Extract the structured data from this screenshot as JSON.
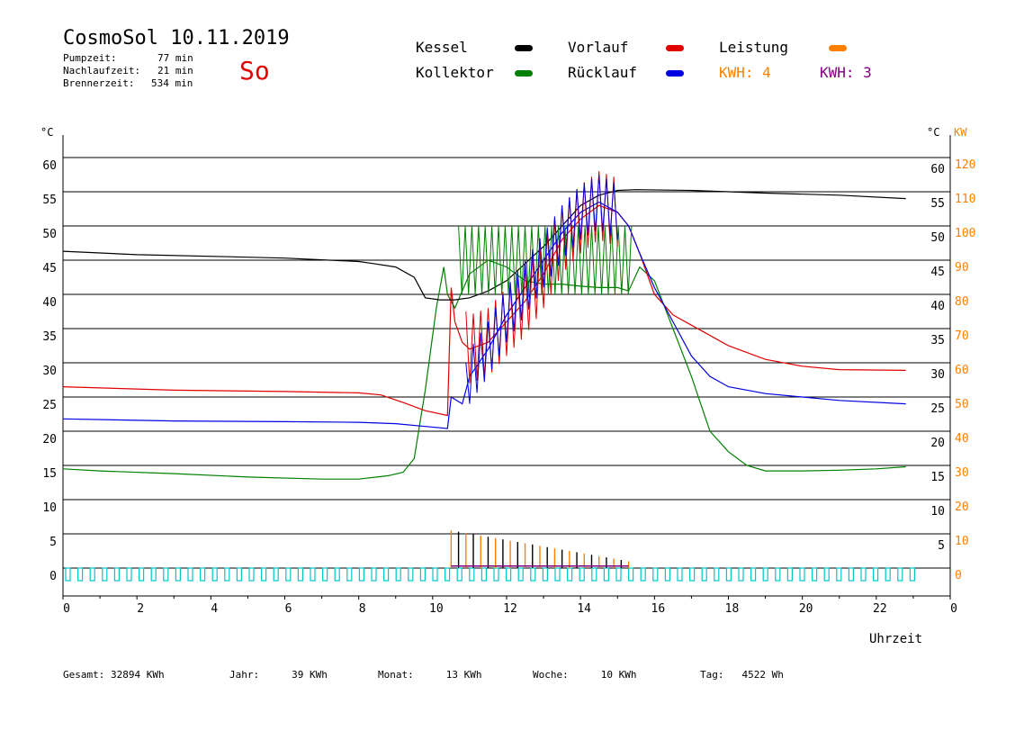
{
  "header": {
    "title": "CosmoSol 10.11.2019",
    "day": "So",
    "stats": [
      {
        "label": "Pumpzeit:",
        "value": "77 min"
      },
      {
        "label": "Nachlaufzeit:",
        "value": "21 min"
      },
      {
        "label": "Brennerzeit:",
        "value": "534 min"
      }
    ]
  },
  "legend": {
    "kessel": "Kessel",
    "vorlauf": "Vorlauf",
    "leistung": "Leistung",
    "kollektor": "Kollektor",
    "ruecklauf": "Rücklauf",
    "kwh_orange": "KWH: 4",
    "kwh_purple": "KWH: 3"
  },
  "footer": [
    {
      "label": "Gesamt:",
      "value": "32894 KWh"
    },
    {
      "label": "Jahr:",
      "value": "39 KWh"
    },
    {
      "label": "Monat:",
      "value": "13 KWh"
    },
    {
      "label": "Woche:",
      "value": "10 KWh"
    },
    {
      "label": "Tag:",
      "value": "4522 Wh"
    }
  ],
  "colors": {
    "kessel": "#000000",
    "vorlauf": "#e00000",
    "kollektor": "#008000",
    "ruecklauf": "#0000e0",
    "leistung": "#ff8000",
    "kwh_purple": "#800080",
    "pump": "#00c8c8"
  },
  "chart_data": {
    "type": "line",
    "xlabel": "Uhrzeit",
    "ylabel_left": "°C",
    "ylabel_right_temp": "°C",
    "ylabel_right_power": "KW",
    "xlim": [
      0,
      24
    ],
    "ylim": [
      0,
      60
    ],
    "ylim_power": [
      0,
      120
    ],
    "grid": true,
    "x_ticks": [
      "0",
      "2",
      "4",
      "6",
      "8",
      "10",
      "12",
      "14",
      "16",
      "18",
      "20",
      "22",
      "0"
    ],
    "y_ticks": [
      "0",
      "5",
      "10",
      "15",
      "20",
      "25",
      "30",
      "35",
      "40",
      "45",
      "50",
      "55",
      "60"
    ],
    "y_ticks_right": [
      "5",
      "10",
      "15",
      "20",
      "25",
      "30",
      "35",
      "40",
      "45",
      "50",
      "55",
      "60"
    ],
    "y_ticks_power": [
      "0",
      "10",
      "20",
      "30",
      "40",
      "50",
      "60",
      "70",
      "80",
      "90",
      "100",
      "110",
      "120"
    ],
    "series": [
      {
        "name": "Kessel",
        "color": "kessel",
        "points": [
          [
            0,
            46.3
          ],
          [
            2,
            45.8
          ],
          [
            4.5,
            45.5
          ],
          [
            6,
            45.3
          ],
          [
            8,
            44.8
          ],
          [
            8.4,
            44.5
          ],
          [
            9,
            44
          ],
          [
            9.5,
            42.5
          ],
          [
            9.8,
            39.5
          ],
          [
            10.2,
            39.2
          ],
          [
            10.6,
            39.2
          ],
          [
            11,
            39.5
          ],
          [
            11.5,
            40.5
          ],
          [
            12,
            42
          ],
          [
            12.5,
            44.5
          ],
          [
            13,
            47
          ],
          [
            13.5,
            50
          ],
          [
            14,
            53
          ],
          [
            14.5,
            54.5
          ],
          [
            15,
            55.2
          ],
          [
            15.5,
            55.3
          ],
          [
            17,
            55.2
          ],
          [
            19,
            54.8
          ],
          [
            21,
            54.5
          ],
          [
            22.8,
            54
          ]
        ]
      },
      {
        "name": "Vorlauf",
        "color": "vorlauf",
        "points": [
          [
            0,
            26.5
          ],
          [
            3,
            26
          ],
          [
            6,
            25.8
          ],
          [
            8,
            25.6
          ],
          [
            8.6,
            25.3
          ],
          [
            9.2,
            24.2
          ],
          [
            9.8,
            23
          ],
          [
            10.4,
            22.3
          ],
          [
            10.5,
            41
          ],
          [
            10.6,
            36
          ],
          [
            10.8,
            33
          ],
          [
            11,
            32
          ],
          [
            11.5,
            33
          ],
          [
            12,
            36
          ],
          [
            12.5,
            39
          ],
          [
            13,
            43
          ],
          [
            13.5,
            48
          ],
          [
            14,
            51
          ],
          [
            14.5,
            53
          ],
          [
            15,
            52
          ],
          [
            15.3,
            50
          ],
          [
            15.6,
            46
          ],
          [
            16,
            40
          ],
          [
            16.5,
            37
          ],
          [
            17,
            35.5
          ],
          [
            18,
            32.5
          ],
          [
            19,
            30.5
          ],
          [
            20,
            29.5
          ],
          [
            21,
            29
          ],
          [
            22.8,
            28.9
          ]
        ]
      },
      {
        "name": "Rücklauf",
        "color": "ruecklauf",
        "points": [
          [
            0,
            21.8
          ],
          [
            3,
            21.5
          ],
          [
            6,
            21.4
          ],
          [
            8,
            21.3
          ],
          [
            9,
            21.1
          ],
          [
            9.8,
            20.7
          ],
          [
            10.4,
            20.4
          ],
          [
            10.5,
            25
          ],
          [
            10.8,
            24
          ],
          [
            11,
            28
          ],
          [
            11.5,
            32
          ],
          [
            12,
            37
          ],
          [
            12.5,
            41
          ],
          [
            13,
            45
          ],
          [
            13.5,
            49
          ],
          [
            14,
            52
          ],
          [
            14.5,
            53.5
          ],
          [
            15,
            52
          ],
          [
            15.3,
            50
          ],
          [
            15.6,
            46
          ],
          [
            16,
            41
          ],
          [
            16.5,
            36
          ],
          [
            17,
            31
          ],
          [
            17.5,
            28
          ],
          [
            18,
            26.5
          ],
          [
            19,
            25.5
          ],
          [
            20,
            25
          ],
          [
            21,
            24.5
          ],
          [
            22.8,
            24
          ]
        ]
      },
      {
        "name": "Kollektor",
        "color": "kollektor",
        "points": [
          [
            0,
            14.5
          ],
          [
            1,
            14.2
          ],
          [
            3,
            13.8
          ],
          [
            5,
            13.3
          ],
          [
            7,
            13
          ],
          [
            8,
            13
          ],
          [
            8.8,
            13.5
          ],
          [
            9.2,
            14
          ],
          [
            9.5,
            16
          ],
          [
            9.8,
            26
          ],
          [
            10.1,
            38
          ],
          [
            10.3,
            44
          ],
          [
            10.4,
            40
          ],
          [
            10.6,
            38
          ],
          [
            11,
            43
          ],
          [
            11.5,
            45
          ],
          [
            12,
            44
          ],
          [
            12.5,
            42
          ],
          [
            13,
            41.5
          ],
          [
            13.5,
            41.5
          ],
          [
            14,
            41.2
          ],
          [
            14.5,
            41
          ],
          [
            15,
            41
          ],
          [
            15.3,
            40.5
          ],
          [
            15.6,
            44
          ],
          [
            16,
            42
          ],
          [
            16.5,
            35
          ],
          [
            17,
            28
          ],
          [
            17.5,
            20
          ],
          [
            18,
            17
          ],
          [
            18.5,
            15
          ],
          [
            19,
            14.2
          ],
          [
            20,
            14.2
          ],
          [
            21,
            14.3
          ],
          [
            22,
            14.5
          ],
          [
            22.8,
            14.8
          ]
        ]
      }
    ],
    "oscillation": {
      "kollektor": {
        "start": 10.7,
        "end": 15.4,
        "step": 0.18,
        "low": 40,
        "high": 50
      },
      "vorlauf": {
        "start": 10.9,
        "end": 15.0,
        "step": 0.2,
        "amp": 5
      },
      "ruecklauf": {
        "start": 10.9,
        "end": 15.0,
        "step": 0.2,
        "amp": 4
      }
    },
    "power": {
      "start": 10.5,
      "end": 15.3,
      "step": 0.2,
      "max": 5.5,
      "min": 1
    }
  }
}
